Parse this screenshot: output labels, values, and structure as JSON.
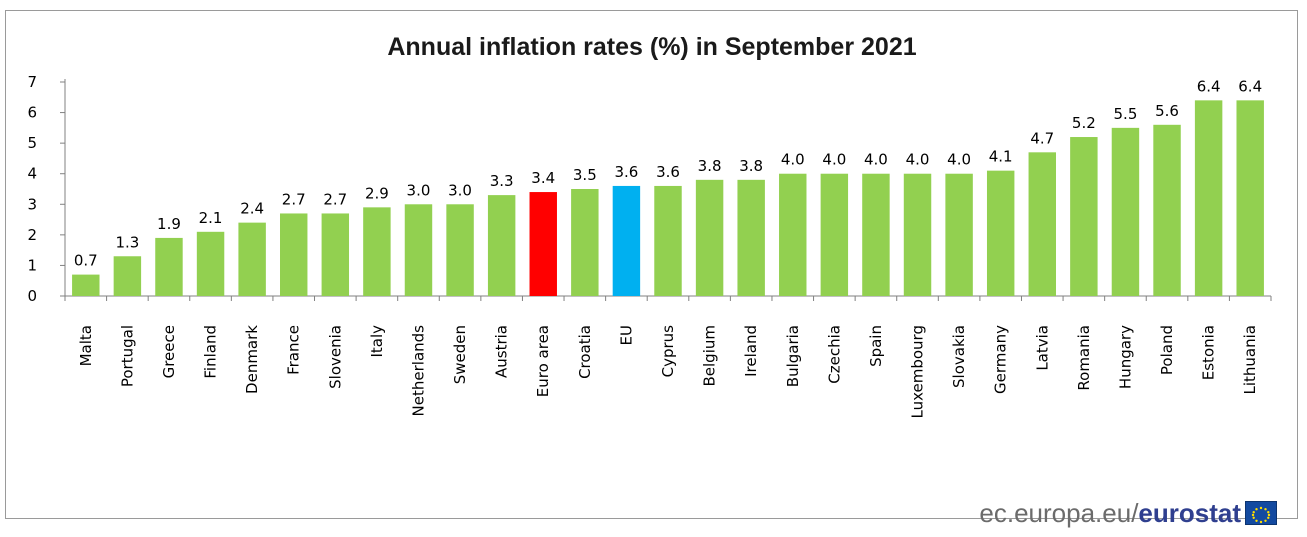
{
  "chart_data": {
    "type": "bar",
    "title": "Annual inflation rates (%) in September 2021",
    "categories": [
      "Malta",
      "Portugal",
      "Greece",
      "Finland",
      "Denmark",
      "France",
      "Slovenia",
      "Italy",
      "Netherlands",
      "Sweden",
      "Austria",
      "Euro area",
      "Croatia",
      "EU",
      "Cyprus",
      "Belgium",
      "Ireland",
      "Bulgaria",
      "Czechia",
      "Spain",
      "Luxembourg",
      "Slovakia",
      "Germany",
      "Latvia",
      "Romania",
      "Hungary",
      "Poland",
      "Estonia",
      "Lithuania"
    ],
    "values": [
      0.7,
      1.3,
      1.9,
      2.1,
      2.4,
      2.7,
      2.7,
      2.9,
      3.0,
      3.0,
      3.3,
      3.4,
      3.5,
      3.6,
      3.6,
      3.8,
      3.8,
      4.0,
      4.0,
      4.0,
      4.0,
      4.0,
      4.1,
      4.7,
      5.2,
      5.5,
      5.6,
      6.4,
      6.4
    ],
    "value_labels": [
      "0.7",
      "1.3",
      "1.9",
      "2.1",
      "2.4",
      "2.7",
      "2.7",
      "2.9",
      "3.0",
      "3.0",
      "3.3",
      "3.4",
      "3.5",
      "3.6",
      "3.6",
      "3.8",
      "3.8",
      "4.0",
      "4.0",
      "4.0",
      "4.0",
      "4.0",
      "4.1",
      "4.7",
      "5.2",
      "5.5",
      "5.6",
      "6.4",
      "6.4"
    ],
    "ylim": [
      0,
      7
    ],
    "yticks": [
      "0",
      "1",
      "2",
      "3",
      "4",
      "5",
      "6",
      "7"
    ],
    "grid": false,
    "legend": "none",
    "colors": {
      "default": "#92d050",
      "Euro area": "#ff0000",
      "EU": "#00b0f0"
    }
  },
  "footer": {
    "domain": "ec.europa.eu/",
    "brand": "eurostat"
  }
}
